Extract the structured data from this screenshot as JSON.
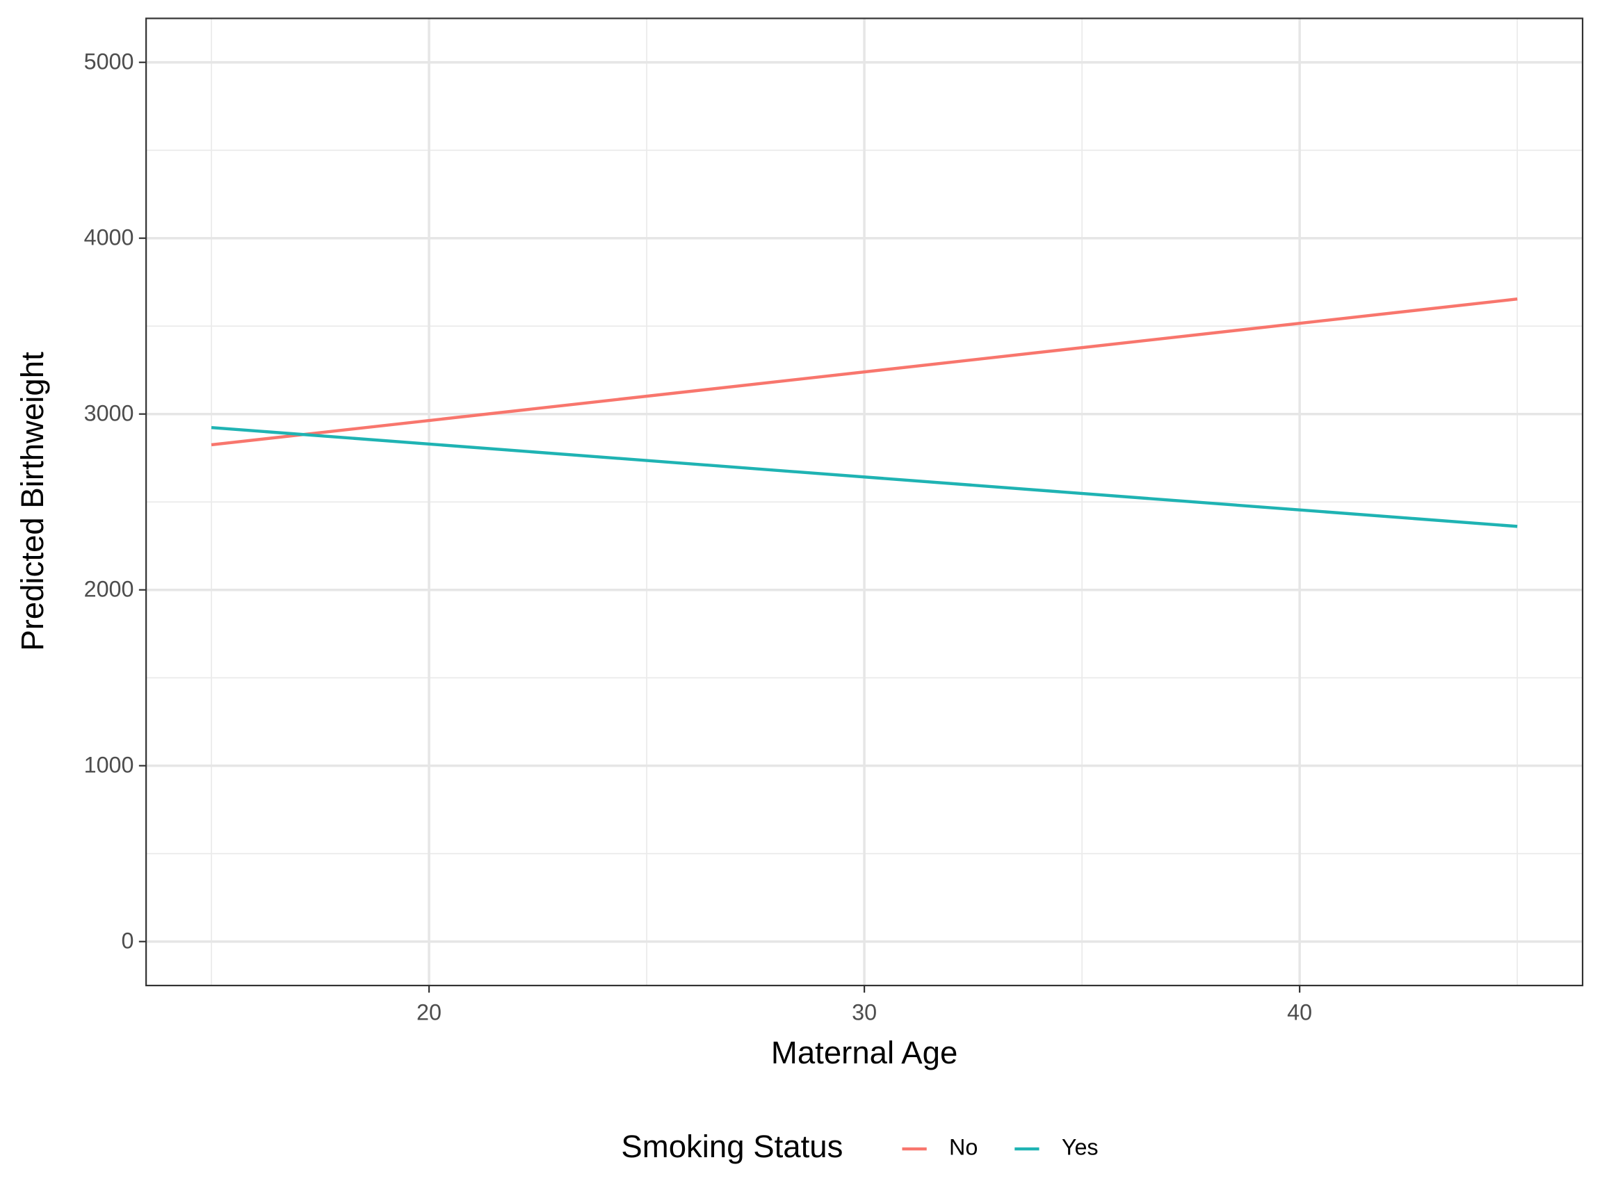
{
  "chart_data": {
    "type": "line",
    "xlabel": "Maternal Age",
    "ylabel": "Predicted Birthweight",
    "legend_title": "Smoking Status",
    "legend": "bottom",
    "x": [
      15,
      45
    ],
    "series": [
      {
        "name": "No",
        "color": "#f8766d",
        "values": [
          2825,
          3654
        ]
      },
      {
        "name": "Yes",
        "color": "#1fb3b3",
        "values": [
          2923,
          2361
        ]
      }
    ],
    "xlim": [
      13.5,
      46.5
    ],
    "xticks": [
      20,
      30,
      40
    ],
    "xminor": [
      15,
      25,
      35,
      45
    ],
    "ylim": [
      -250,
      5250
    ],
    "yticks": [
      0,
      1000,
      2000,
      3000,
      4000,
      5000
    ],
    "yminor": [
      500,
      1500,
      2500,
      3500,
      4500
    ],
    "grid": true
  }
}
